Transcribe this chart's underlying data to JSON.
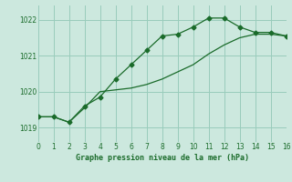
{
  "title": "Graphe pression niveau de la mer (hPa)",
  "background_color": "#cce8de",
  "grid_color": "#99ccbb",
  "line_color": "#1a6b2a",
  "x_min": 0,
  "x_max": 16,
  "y_min": 1018.6,
  "y_max": 1022.4,
  "yticks": [
    1019,
    1020,
    1021,
    1022
  ],
  "xticks": [
    0,
    1,
    2,
    3,
    4,
    5,
    6,
    7,
    8,
    9,
    10,
    11,
    12,
    13,
    14,
    15,
    16
  ],
  "line1_x": [
    0,
    1,
    2,
    3,
    4,
    5,
    6,
    7,
    8,
    9,
    10,
    11,
    12,
    13,
    14,
    15,
    16
  ],
  "line1_y": [
    1019.3,
    1019.3,
    1019.15,
    1019.6,
    1019.85,
    1020.35,
    1020.75,
    1021.15,
    1021.55,
    1021.6,
    1021.8,
    1022.05,
    1022.05,
    1021.8,
    1021.65,
    1021.65,
    1021.55
  ],
  "line2_x": [
    0,
    1,
    2,
    3,
    4,
    5,
    6,
    7,
    8,
    9,
    10,
    11,
    12,
    13,
    14,
    15,
    16
  ],
  "line2_y": [
    1019.3,
    1019.3,
    1019.15,
    1019.55,
    1020.0,
    1020.05,
    1020.1,
    1020.2,
    1020.35,
    1020.55,
    1020.75,
    1021.05,
    1021.3,
    1021.5,
    1021.6,
    1021.6,
    1021.55
  ]
}
